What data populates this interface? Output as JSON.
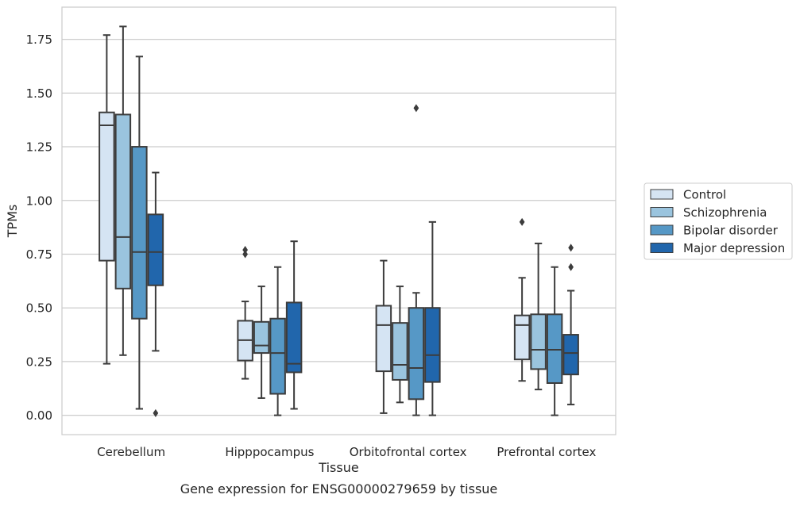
{
  "chart_data": {
    "type": "box",
    "xlabel": "Tissue",
    "ylabel": "TPMs",
    "caption": "Gene expression for ENSG00000279659 by tissue",
    "ylim": [
      -0.09,
      1.9
    ],
    "yticks": [
      "0.00",
      "0.25",
      "0.50",
      "0.75",
      "1.00",
      "1.25",
      "1.50",
      "1.75"
    ],
    "ytick_values": [
      0,
      0.25,
      0.5,
      0.75,
      1.0,
      1.25,
      1.5,
      1.75
    ],
    "grid": "horizontal",
    "legend_position": "right",
    "categories": [
      "Cerebellum",
      "Hipppocampus",
      "Orbitofrontal cortex",
      "Prefrontal cortex"
    ],
    "series": [
      {
        "name": "Control",
        "color": "#d5e4f3",
        "boxes": [
          {
            "whislo": 0.24,
            "q1": 0.72,
            "med": 1.35,
            "q3": 1.41,
            "whishi": 1.77,
            "fliers": []
          },
          {
            "whislo": 0.17,
            "q1": 0.255,
            "med": 0.35,
            "q3": 0.44,
            "whishi": 0.53,
            "fliers": [
              0.75,
              0.77
            ]
          },
          {
            "whislo": 0.01,
            "q1": 0.205,
            "med": 0.42,
            "q3": 0.51,
            "whishi": 0.72,
            "fliers": []
          },
          {
            "whislo": 0.16,
            "q1": 0.26,
            "med": 0.42,
            "q3": 0.465,
            "whishi": 0.64,
            "fliers": [
              0.9
            ]
          }
        ]
      },
      {
        "name": "Schizophrenia",
        "color": "#9ac4de",
        "boxes": [
          {
            "whislo": 0.28,
            "q1": 0.59,
            "med": 0.83,
            "q3": 1.4,
            "whishi": 1.81,
            "fliers": []
          },
          {
            "whislo": 0.08,
            "q1": 0.29,
            "med": 0.325,
            "q3": 0.435,
            "whishi": 0.6,
            "fliers": []
          },
          {
            "whislo": 0.06,
            "q1": 0.165,
            "med": 0.235,
            "q3": 0.43,
            "whishi": 0.6,
            "fliers": []
          },
          {
            "whislo": 0.12,
            "q1": 0.215,
            "med": 0.305,
            "q3": 0.47,
            "whishi": 0.8,
            "fliers": []
          }
        ]
      },
      {
        "name": "Bipolar disorder",
        "color": "#5698c6",
        "boxes": [
          {
            "whislo": 0.03,
            "q1": 0.45,
            "med": 0.76,
            "q3": 1.25,
            "whishi": 1.67,
            "fliers": []
          },
          {
            "whislo": 0.0,
            "q1": 0.1,
            "med": 0.29,
            "q3": 0.45,
            "whishi": 0.69,
            "fliers": []
          },
          {
            "whislo": 0.0,
            "q1": 0.075,
            "med": 0.22,
            "q3": 0.5,
            "whishi": 0.57,
            "fliers": [
              1.43
            ]
          },
          {
            "whislo": 0.0,
            "q1": 0.15,
            "med": 0.305,
            "q3": 0.47,
            "whishi": 0.69,
            "fliers": []
          }
        ]
      },
      {
        "name": "Major depression",
        "color": "#2166ac",
        "boxes": [
          {
            "whislo": 0.3,
            "q1": 0.605,
            "med": 0.76,
            "q3": 0.935,
            "whishi": 1.13,
            "fliers": [
              0.01
            ]
          },
          {
            "whislo": 0.03,
            "q1": 0.2,
            "med": 0.24,
            "q3": 0.525,
            "whishi": 0.81,
            "fliers": []
          },
          {
            "whislo": 0.0,
            "q1": 0.155,
            "med": 0.28,
            "q3": 0.5,
            "whishi": 0.9,
            "fliers": []
          },
          {
            "whislo": 0.05,
            "q1": 0.19,
            "med": 0.29,
            "q3": 0.375,
            "whishi": 0.58,
            "fliers": [
              0.69,
              0.78
            ]
          }
        ]
      }
    ]
  }
}
